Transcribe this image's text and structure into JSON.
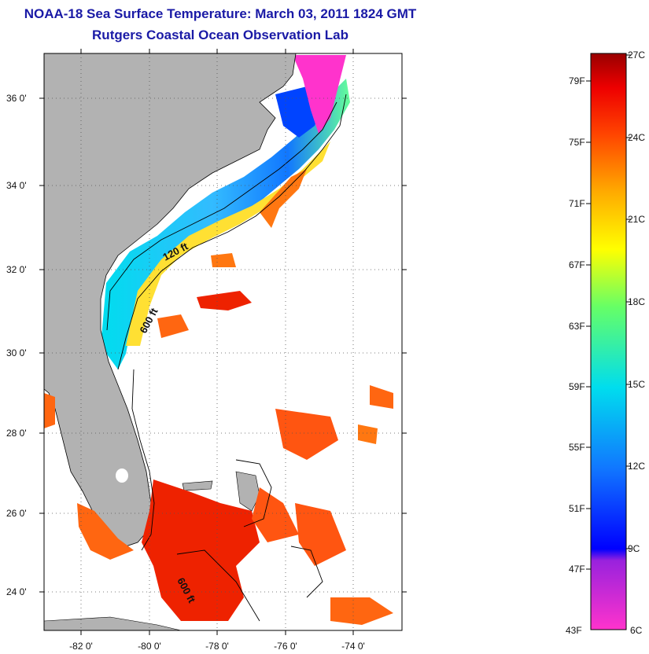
{
  "title": {
    "line1": "NOAA-18 Sea Surface Temperature:  March 03, 2011 1824 GMT",
    "line2": "Rutgers Coastal Ocean Observation Lab"
  },
  "map": {
    "lat_ticks": [
      {
        "lat": 36,
        "label": "36 0'"
      },
      {
        "lat": 34,
        "label": "34 0'"
      },
      {
        "lat": 32,
        "label": "32 0'"
      },
      {
        "lat": 30,
        "label": "30 0'"
      },
      {
        "lat": 28,
        "label": "28 0'"
      },
      {
        "lat": 26,
        "label": "26 0'"
      },
      {
        "lat": 24,
        "label": "24 0'"
      }
    ],
    "lon_ticks": [
      {
        "lon": -82,
        "label": "-82 0'"
      },
      {
        "lon": -80,
        "label": "-80 0'"
      },
      {
        "lon": -78,
        "label": "-78 0'"
      },
      {
        "lon": -76,
        "label": "-76 0'"
      },
      {
        "lon": -74,
        "label": "-74 0'"
      }
    ],
    "contour_labels": [
      {
        "id": "contour-120ft",
        "text": "120 ft"
      },
      {
        "id": "contour-600ft-north",
        "text": "600 ft"
      },
      {
        "id": "contour-600ft-south",
        "text": "600 ft"
      }
    ],
    "colors": {
      "land": "#b2b2b2",
      "ocean_nodata": "#ffffff",
      "gridline": "#555555"
    }
  },
  "colorbar": {
    "fahrenheit_labels": [
      "79F",
      "75F",
      "71F",
      "67F",
      "63F",
      "59F",
      "55F",
      "51F",
      "47F",
      "43F"
    ],
    "celsius_labels": [
      "27C",
      "24C",
      "21C",
      "18C",
      "15C",
      "12C",
      "9C",
      "6C"
    ],
    "range_celsius": [
      6,
      27
    ],
    "colors": [
      "#ff33cc",
      "#9922dd",
      "#0000ff",
      "#1177ff",
      "#00ddee",
      "#66ff66",
      "#ffff00",
      "#ffaa00",
      "#ff4400",
      "#ee0000",
      "#990000"
    ]
  }
}
